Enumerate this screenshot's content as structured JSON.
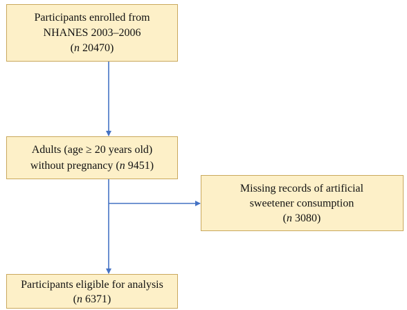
{
  "nodes": [
    {
      "lines": [
        [
          {
            "text": "Participants enrolled from"
          }
        ],
        [
          {
            "text": "NHANES 2003–2006"
          }
        ],
        [
          {
            "text": "("
          },
          {
            "text": "n",
            "italic": true
          },
          {
            "text": " 20470)"
          }
        ]
      ]
    },
    {
      "lines": [
        [
          {
            "text": "Adults (age ≥ 20 years old)"
          }
        ],
        [
          {
            "text": "without pregnancy ("
          },
          {
            "text": "n",
            "italic": true
          },
          {
            "text": " 9451)"
          }
        ]
      ]
    },
    {
      "lines": [
        [
          {
            "text": "Missing records of artificial"
          }
        ],
        [
          {
            "text": "sweetener consumption"
          }
        ],
        [
          {
            "text": "("
          },
          {
            "text": "n",
            "italic": true
          },
          {
            "text": " 3080)"
          }
        ]
      ]
    },
    {
      "lines": [
        [
          {
            "text": "Participants eligible for analysis"
          }
        ],
        [
          {
            "text": "("
          },
          {
            "text": "n",
            "italic": true
          },
          {
            "text": " 6371)"
          }
        ]
      ]
    }
  ]
}
